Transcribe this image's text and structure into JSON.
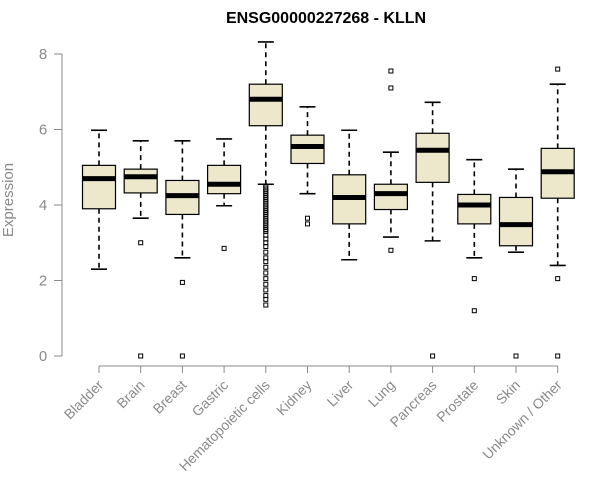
{
  "colors": {
    "box_fill": "#EDE7CC",
    "box_stroke": "#000000",
    "axis": "#8a8a8a",
    "text": "#8a8a8a",
    "title": "#000000"
  },
  "chart_data": {
    "type": "boxplot",
    "title": "ENSG00000227268 - KLLN",
    "xlabel": "",
    "ylabel": "Expression",
    "ylim": [
      0,
      8
    ],
    "yticks": [
      0,
      2,
      4,
      6,
      8
    ],
    "grid": false,
    "categories": [
      "Bladder",
      "Brain",
      "Breast",
      "Gastric",
      "Hematopoietic cells",
      "Kidney",
      "Liver",
      "Lung",
      "Pancreas",
      "Prostate",
      "Skin",
      "Unknown / Other"
    ],
    "boxes": [
      {
        "name": "Bladder",
        "whisker_low": 2.3,
        "q1": 3.9,
        "median": 4.7,
        "q3": 5.05,
        "whisker_high": 5.98,
        "outliers": []
      },
      {
        "name": "Brain",
        "whisker_low": 3.65,
        "q1": 4.32,
        "median": 4.75,
        "q3": 4.95,
        "whisker_high": 5.7,
        "outliers": [
          3.0,
          0.0
        ]
      },
      {
        "name": "Breast",
        "whisker_low": 2.6,
        "q1": 3.75,
        "median": 4.25,
        "q3": 4.65,
        "whisker_high": 5.7,
        "outliers": [
          1.95,
          0.0
        ]
      },
      {
        "name": "Gastric",
        "whisker_low": 3.98,
        "q1": 4.3,
        "median": 4.55,
        "q3": 5.05,
        "whisker_high": 5.75,
        "outliers": [
          2.85
        ]
      },
      {
        "name": "Hematopoietic cells",
        "whisker_low": 4.55,
        "q1": 6.1,
        "median": 6.8,
        "q3": 7.2,
        "whisker_high": 8.32,
        "outliers": [
          4.5,
          4.45,
          4.4,
          4.35,
          4.3,
          4.25,
          4.2,
          4.15,
          4.1,
          4.05,
          4.0,
          3.95,
          3.9,
          3.85,
          3.8,
          3.75,
          3.7,
          3.65,
          3.6,
          3.55,
          3.5,
          3.45,
          3.4,
          3.35,
          3.3,
          3.2,
          3.1,
          3.0,
          2.9,
          2.75,
          2.6,
          2.5,
          2.35,
          2.2,
          2.05,
          1.9,
          1.75,
          1.6,
          1.5,
          1.35
        ]
      },
      {
        "name": "Kidney",
        "whisker_low": 4.3,
        "q1": 5.1,
        "median": 5.55,
        "q3": 5.85,
        "whisker_high": 6.6,
        "outliers": [
          3.65,
          3.5
        ]
      },
      {
        "name": "Liver",
        "whisker_low": 2.55,
        "q1": 3.5,
        "median": 4.2,
        "q3": 4.8,
        "whisker_high": 5.98,
        "outliers": []
      },
      {
        "name": "Lung",
        "whisker_low": 3.15,
        "q1": 3.88,
        "median": 4.3,
        "q3": 4.55,
        "whisker_high": 5.4,
        "outliers": [
          7.55,
          7.1,
          2.8
        ]
      },
      {
        "name": "Pancreas",
        "whisker_low": 3.05,
        "q1": 4.6,
        "median": 5.45,
        "q3": 5.9,
        "whisker_high": 6.72,
        "outliers": [
          0.0
        ]
      },
      {
        "name": "Prostate",
        "whisker_low": 2.6,
        "q1": 3.5,
        "median": 4.0,
        "q3": 4.28,
        "whisker_high": 5.2,
        "outliers": [
          2.05,
          1.2
        ]
      },
      {
        "name": "Skin",
        "whisker_low": 2.75,
        "q1": 2.92,
        "median": 3.48,
        "q3": 4.2,
        "whisker_high": 4.95,
        "outliers": [
          0.0
        ]
      },
      {
        "name": "Unknown / Other",
        "whisker_low": 2.4,
        "q1": 4.18,
        "median": 4.88,
        "q3": 5.5,
        "whisker_high": 7.2,
        "outliers": [
          7.6,
          2.05,
          0.0
        ]
      }
    ]
  }
}
